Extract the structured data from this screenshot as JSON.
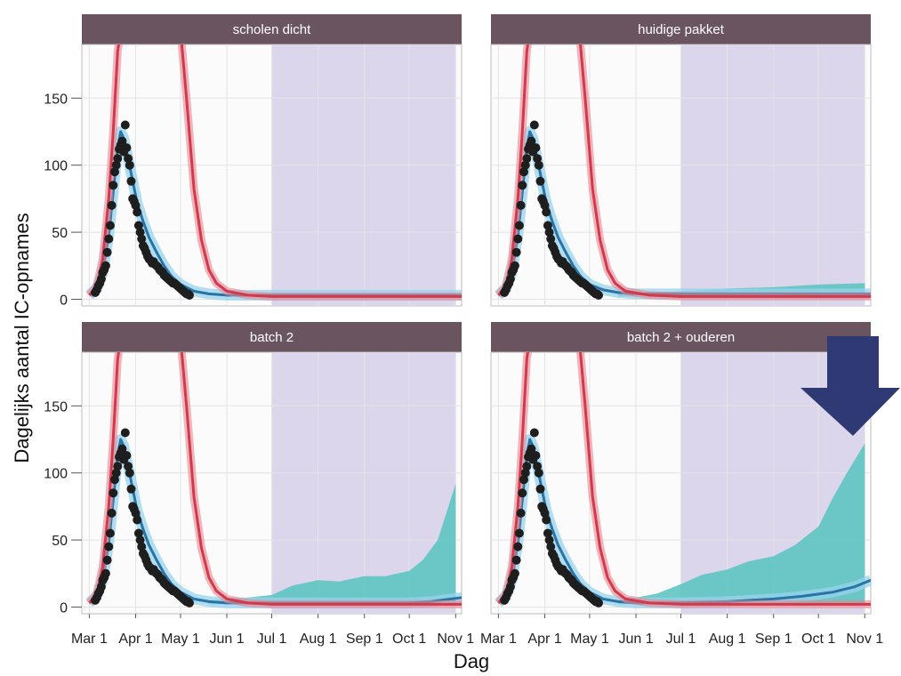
{
  "chart_data": {
    "type": "line",
    "xlabel": "Dag",
    "ylabel": "Dagelijks aantal IC-opnames",
    "ylim": [
      -5,
      190
    ],
    "yticks": [
      0,
      50,
      100,
      150
    ],
    "xlim": [
      "2020-02-25",
      "2020-11-05"
    ],
    "xticks": [
      {
        "date": "2020-03-01",
        "label": "Mar 1"
      },
      {
        "date": "2020-04-01",
        "label": "Apr 1"
      },
      {
        "date": "2020-05-01",
        "label": "May 1"
      },
      {
        "date": "2020-06-01",
        "label": "Jun 1"
      },
      {
        "date": "2020-07-01",
        "label": "Jul 1"
      },
      {
        "date": "2020-08-01",
        "label": "Aug 1"
      },
      {
        "date": "2020-09-01",
        "label": "Sep 1"
      },
      {
        "date": "2020-10-01",
        "label": "Oct 1"
      },
      {
        "date": "2020-11-01",
        "label": "Nov 1"
      }
    ],
    "shaded_period": [
      "2020-07-01",
      "2020-11-01"
    ],
    "colors": {
      "strip": "#6a5460",
      "shade": "#dcd6ec",
      "panel_bg": "#fbfbfb",
      "grid": "#e4e4e4",
      "red_curve": "#d23a4c",
      "red_band": "#e88593",
      "blue_curve": "#2a73a6",
      "blue_band": "#97d3ec",
      "teal_band": "#5ec5c2",
      "points": "#1e1e1e",
      "arrow": "#2f3a74"
    },
    "observed": {
      "x": [
        "2020-03-05",
        "2020-03-06",
        "2020-03-07",
        "2020-03-08",
        "2020-03-09",
        "2020-03-10",
        "2020-03-11",
        "2020-03-12",
        "2020-03-13",
        "2020-03-14",
        "2020-03-15",
        "2020-03-16",
        "2020-03-17",
        "2020-03-18",
        "2020-03-19",
        "2020-03-20",
        "2020-03-21",
        "2020-03-22",
        "2020-03-23",
        "2020-03-24",
        "2020-03-25",
        "2020-03-26",
        "2020-03-27",
        "2020-03-28",
        "2020-03-29",
        "2020-03-30",
        "2020-03-31",
        "2020-04-01",
        "2020-04-02",
        "2020-04-03",
        "2020-04-04",
        "2020-04-05",
        "2020-04-06",
        "2020-04-07",
        "2020-04-08",
        "2020-04-09",
        "2020-04-10",
        "2020-04-11",
        "2020-04-12",
        "2020-04-13",
        "2020-04-14",
        "2020-04-15",
        "2020-04-16",
        "2020-04-17",
        "2020-04-18",
        "2020-04-19",
        "2020-04-20",
        "2020-04-21",
        "2020-04-22",
        "2020-04-23",
        "2020-04-24",
        "2020-04-25",
        "2020-04-26",
        "2020-04-27",
        "2020-04-28",
        "2020-04-29",
        "2020-04-30",
        "2020-05-01",
        "2020-05-02",
        "2020-05-03",
        "2020-05-04",
        "2020-05-05",
        "2020-05-06",
        "2020-05-07"
      ],
      "y": [
        5,
        7,
        10,
        12,
        15,
        20,
        22,
        25,
        35,
        45,
        55,
        70,
        85,
        95,
        100,
        105,
        112,
        115,
        118,
        110,
        130,
        113,
        105,
        100,
        88,
        75,
        73,
        70,
        65,
        55,
        50,
        45,
        40,
        38,
        35,
        32,
        30,
        29,
        27,
        28,
        26,
        25,
        24,
        22,
        21,
        20,
        18,
        17,
        16,
        15,
        14,
        13,
        12,
        12,
        11,
        10,
        9,
        8,
        7,
        6,
        5,
        4,
        4,
        3
      ]
    },
    "panels": [
      {
        "title": "scholen dicht",
        "red": {
          "x": [
            "2020-03-01",
            "2020-03-06",
            "2020-03-10",
            "2020-03-14",
            "2020-03-17",
            "2020-03-20",
            "2020-03-22",
            "2020-05-01",
            "2020-05-05",
            "2020-05-10",
            "2020-05-15",
            "2020-05-20",
            "2020-05-25",
            "2020-06-01",
            "2020-06-15",
            "2020-07-01",
            "2020-11-05"
          ],
          "y": [
            3,
            10,
            30,
            75,
            125,
            185,
            200,
            200,
            150,
            82,
            44,
            22,
            12,
            6,
            3,
            2,
            2
          ]
        },
        "blue": {
          "x": [
            "2020-03-01",
            "2020-03-06",
            "2020-03-10",
            "2020-03-14",
            "2020-03-17",
            "2020-03-20",
            "2020-03-22",
            "2020-03-24",
            "2020-03-27",
            "2020-03-30",
            "2020-04-02",
            "2020-04-06",
            "2020-04-10",
            "2020-04-15",
            "2020-04-20",
            "2020-04-25",
            "2020-05-01",
            "2020-05-10",
            "2020-05-20",
            "2020-06-01",
            "2020-07-01",
            "2020-11-05"
          ],
          "y": [
            3,
            8,
            20,
            48,
            80,
            113,
            125,
            120,
            105,
            88,
            72,
            58,
            46,
            35,
            25,
            17,
            11,
            6,
            4,
            3,
            3,
            3
          ]
        },
        "teal": {
          "x": [
            "2020-07-01",
            "2020-11-01"
          ],
          "lo": [
            2,
            2
          ],
          "hi": [
            3,
            3
          ]
        }
      },
      {
        "title": "huidige pakket",
        "red": {
          "x": [
            "2020-03-01",
            "2020-03-06",
            "2020-03-10",
            "2020-03-14",
            "2020-03-17",
            "2020-03-20",
            "2020-03-22",
            "2020-04-24",
            "2020-04-28",
            "2020-05-03",
            "2020-05-08",
            "2020-05-13",
            "2020-05-18",
            "2020-05-25",
            "2020-06-10",
            "2020-07-01",
            "2020-11-05"
          ],
          "y": [
            3,
            10,
            30,
            75,
            125,
            185,
            200,
            200,
            150,
            82,
            44,
            22,
            12,
            6,
            3,
            2,
            2
          ]
        },
        "blue": {
          "x": [
            "2020-03-01",
            "2020-03-06",
            "2020-03-10",
            "2020-03-14",
            "2020-03-17",
            "2020-03-20",
            "2020-03-22",
            "2020-03-24",
            "2020-03-27",
            "2020-03-30",
            "2020-04-02",
            "2020-04-06",
            "2020-04-10",
            "2020-04-15",
            "2020-04-20",
            "2020-04-25",
            "2020-05-01",
            "2020-05-10",
            "2020-05-20",
            "2020-06-01",
            "2020-07-01",
            "2020-08-01",
            "2020-09-01",
            "2020-10-01",
            "2020-11-05"
          ],
          "y": [
            3,
            8,
            20,
            48,
            80,
            113,
            125,
            120,
            105,
            88,
            72,
            58,
            46,
            35,
            25,
            17,
            11,
            7,
            5,
            4,
            4,
            4,
            4,
            4,
            4
          ]
        },
        "teal": {
          "x": [
            "2020-05-20",
            "2020-06-01",
            "2020-07-01",
            "2020-08-01",
            "2020-09-01",
            "2020-10-01",
            "2020-11-01"
          ],
          "lo": [
            2,
            2,
            2,
            2,
            2,
            2,
            2
          ],
          "hi": [
            5,
            5,
            6,
            8,
            9,
            11,
            12
          ]
        }
      },
      {
        "title": "batch 2",
        "red": {
          "x": [
            "2020-03-01",
            "2020-03-06",
            "2020-03-10",
            "2020-03-14",
            "2020-03-17",
            "2020-03-20",
            "2020-03-22",
            "2020-05-01",
            "2020-05-05",
            "2020-05-10",
            "2020-05-15",
            "2020-05-20",
            "2020-05-25",
            "2020-06-01",
            "2020-06-15",
            "2020-07-01",
            "2020-11-05"
          ],
          "y": [
            3,
            10,
            30,
            75,
            125,
            185,
            200,
            200,
            150,
            82,
            44,
            22,
            12,
            6,
            3,
            2,
            2
          ]
        },
        "blue": {
          "x": [
            "2020-03-01",
            "2020-03-06",
            "2020-03-10",
            "2020-03-14",
            "2020-03-17",
            "2020-03-20",
            "2020-03-22",
            "2020-03-24",
            "2020-03-27",
            "2020-03-30",
            "2020-04-02",
            "2020-04-06",
            "2020-04-10",
            "2020-04-15",
            "2020-04-20",
            "2020-04-25",
            "2020-05-01",
            "2020-05-10",
            "2020-05-20",
            "2020-06-01",
            "2020-07-01",
            "2020-08-01",
            "2020-09-01",
            "2020-10-01",
            "2020-10-15",
            "2020-11-05"
          ],
          "y": [
            3,
            8,
            20,
            48,
            80,
            113,
            125,
            120,
            105,
            88,
            72,
            58,
            46,
            35,
            25,
            17,
            11,
            6,
            4,
            3,
            3,
            3,
            3,
            3,
            4,
            7
          ]
        },
        "teal": {
          "x": [
            "2020-05-20",
            "2020-06-01",
            "2020-06-15",
            "2020-07-01",
            "2020-07-15",
            "2020-08-01",
            "2020-08-15",
            "2020-09-01",
            "2020-09-15",
            "2020-10-01",
            "2020-10-10",
            "2020-10-20",
            "2020-10-28",
            "2020-11-01"
          ],
          "lo": [
            2,
            2,
            2,
            2,
            2,
            2,
            2,
            2,
            2,
            2,
            2,
            2,
            2,
            2
          ],
          "hi": [
            5,
            6,
            7,
            9,
            16,
            20,
            19,
            23,
            23,
            27,
            35,
            50,
            78,
            92
          ]
        }
      },
      {
        "title": "batch 2 + ouderen",
        "red": {
          "x": [
            "2020-03-01",
            "2020-03-06",
            "2020-03-10",
            "2020-03-14",
            "2020-03-17",
            "2020-03-20",
            "2020-03-22",
            "2020-04-24",
            "2020-04-28",
            "2020-05-03",
            "2020-05-08",
            "2020-05-13",
            "2020-05-18",
            "2020-05-25",
            "2020-06-10",
            "2020-07-01",
            "2020-11-05"
          ],
          "y": [
            3,
            10,
            30,
            75,
            125,
            185,
            200,
            200,
            150,
            82,
            44,
            22,
            12,
            6,
            3,
            2,
            2
          ]
        },
        "blue": {
          "x": [
            "2020-03-01",
            "2020-03-06",
            "2020-03-10",
            "2020-03-14",
            "2020-03-17",
            "2020-03-20",
            "2020-03-22",
            "2020-03-24",
            "2020-03-27",
            "2020-03-30",
            "2020-04-02",
            "2020-04-06",
            "2020-04-10",
            "2020-04-15",
            "2020-04-20",
            "2020-04-25",
            "2020-05-01",
            "2020-05-10",
            "2020-05-20",
            "2020-06-01",
            "2020-07-01",
            "2020-08-01",
            "2020-09-01",
            "2020-09-20",
            "2020-10-10",
            "2020-10-25",
            "2020-11-05"
          ],
          "y": [
            3,
            8,
            20,
            48,
            80,
            113,
            125,
            120,
            105,
            88,
            72,
            58,
            46,
            35,
            25,
            17,
            11,
            6,
            4,
            3,
            3,
            4,
            6,
            8,
            11,
            15,
            20
          ]
        },
        "teal": {
          "x": [
            "2020-05-20",
            "2020-06-01",
            "2020-06-15",
            "2020-07-01",
            "2020-07-15",
            "2020-08-01",
            "2020-08-15",
            "2020-09-01",
            "2020-09-15",
            "2020-10-01",
            "2020-10-10",
            "2020-10-20",
            "2020-11-01"
          ],
          "lo": [
            2,
            2,
            2,
            2,
            2,
            2,
            2,
            2,
            2,
            2,
            2,
            2,
            2
          ],
          "hi": [
            5,
            7,
            10,
            17,
            24,
            28,
            34,
            38,
            46,
            60,
            80,
            100,
            122
          ]
        }
      }
    ]
  },
  "annotation": {
    "icon": "arrow-down-icon"
  }
}
